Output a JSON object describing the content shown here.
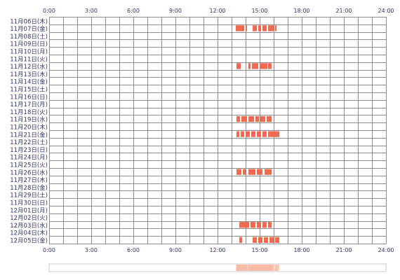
{
  "chart_data": {
    "type": "heatmap",
    "x_tick_labels": [
      "0:00",
      "3:00",
      "6:00",
      "9:00",
      "12:00",
      "15:00",
      "18:00",
      "21:00",
      "24:00"
    ],
    "x_range_hours": [
      0,
      24
    ],
    "grid": true,
    "bar_color": "#ef6a4e",
    "summary_color": "#f7b9a6",
    "rows": [
      {
        "label": "11月06日(木)",
        "intervals": []
      },
      {
        "label": "11月07日(金)",
        "intervals": [
          [
            13.3,
            13.9
          ],
          [
            14.0,
            14.1
          ],
          [
            14.5,
            14.8
          ],
          [
            14.9,
            15.1
          ],
          [
            15.2,
            15.5
          ],
          [
            15.6,
            16.0
          ],
          [
            16.1,
            16.2
          ]
        ]
      },
      {
        "label": "11月08日(土)",
        "intervals": []
      },
      {
        "label": "11月09日(日)",
        "intervals": []
      },
      {
        "label": "11月10日(月)",
        "intervals": []
      },
      {
        "label": "11月11日(火)",
        "intervals": []
      },
      {
        "label": "11月12日(水)",
        "intervals": [
          [
            13.35,
            13.65
          ],
          [
            14.2,
            14.35
          ],
          [
            14.45,
            14.9
          ],
          [
            15.0,
            15.55
          ],
          [
            15.6,
            15.85
          ]
        ]
      },
      {
        "label": "11月13日(木)",
        "intervals": []
      },
      {
        "label": "11月14日(金)",
        "intervals": []
      },
      {
        "label": "11月15日(土)",
        "intervals": []
      },
      {
        "label": "11月16日(日)",
        "intervals": []
      },
      {
        "label": "11月17日(月)",
        "intervals": []
      },
      {
        "label": "11月18日(火)",
        "intervals": []
      },
      {
        "label": "11月19日(水)",
        "intervals": [
          [
            13.35,
            13.6
          ],
          [
            13.7,
            14.1
          ],
          [
            14.2,
            14.6
          ],
          [
            14.7,
            14.95
          ],
          [
            15.05,
            15.4
          ],
          [
            15.5,
            15.85
          ]
        ]
      },
      {
        "label": "11月20日(木)",
        "intervals": []
      },
      {
        "label": "11月21日(金)",
        "intervals": [
          [
            13.35,
            13.55
          ],
          [
            13.65,
            13.9
          ],
          [
            14.0,
            14.3
          ],
          [
            14.4,
            14.7
          ],
          [
            14.8,
            15.1
          ],
          [
            15.2,
            15.5
          ],
          [
            15.6,
            16.4
          ]
        ]
      },
      {
        "label": "11月22日(土)",
        "intervals": []
      },
      {
        "label": "11月23日(日)",
        "intervals": []
      },
      {
        "label": "11月24日(月)",
        "intervals": []
      },
      {
        "label": "11月25日(火)",
        "intervals": []
      },
      {
        "label": "11月26日(水)",
        "intervals": [
          [
            13.35,
            13.7
          ],
          [
            13.8,
            14.0
          ],
          [
            14.2,
            14.7
          ],
          [
            14.8,
            15.2
          ],
          [
            15.35,
            15.85
          ]
        ]
      },
      {
        "label": "11月27日(木)",
        "intervals": []
      },
      {
        "label": "11月28日(金)",
        "intervals": []
      },
      {
        "label": "11月29日(土)",
        "intervals": []
      },
      {
        "label": "11月30日(日)",
        "intervals": []
      },
      {
        "label": "12月01日(月)",
        "intervals": []
      },
      {
        "label": "12月02日(火)",
        "intervals": []
      },
      {
        "label": "12月03日(水)",
        "intervals": [
          [
            13.55,
            14.25
          ],
          [
            14.35,
            14.7
          ],
          [
            14.8,
            15.1
          ],
          [
            15.2,
            15.5
          ],
          [
            15.6,
            15.85
          ]
        ]
      },
      {
        "label": "12月04日(木)",
        "intervals": []
      },
      {
        "label": "12月05日(金)",
        "intervals": [
          [
            13.55,
            13.75
          ],
          [
            14.5,
            14.8
          ],
          [
            14.9,
            15.2
          ],
          [
            15.3,
            15.6
          ],
          [
            15.7,
            16.0
          ],
          [
            16.1,
            16.4
          ]
        ]
      }
    ]
  }
}
